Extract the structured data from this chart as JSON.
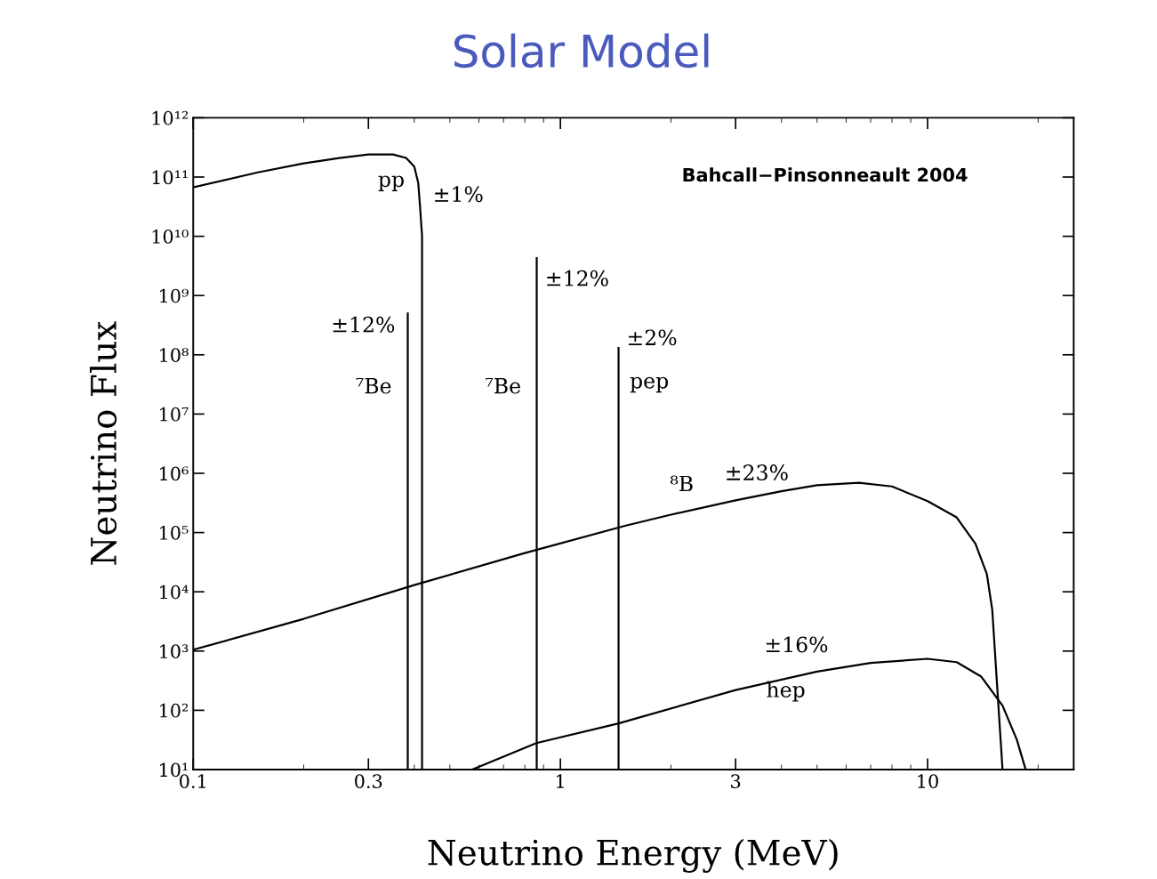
{
  "chart_data": {
    "type": "line",
    "title": "Solar Model",
    "xlabel": "Neutrino Energy (MeV)",
    "ylabel": "Neutrino Flux",
    "log": "xy",
    "xlim": [
      0.1,
      25
    ],
    "ylim": [
      10,
      1000000000000.0
    ],
    "xticks": [
      0.1,
      0.3,
      1,
      3,
      10
    ],
    "yticks": [
      {
        "value": 10,
        "label": "10¹"
      },
      {
        "value": 100,
        "label": "10²"
      },
      {
        "value": 1000,
        "label": "10³"
      },
      {
        "value": 10000,
        "label": "10⁴"
      },
      {
        "value": 100000,
        "label": "10⁵"
      },
      {
        "value": 1000000,
        "label": "10⁶"
      },
      {
        "value": 10000000,
        "label": "10⁷"
      },
      {
        "value": 100000000,
        "label": "10⁸"
      },
      {
        "value": 1000000000,
        "label": "10⁹"
      },
      {
        "value": 10000000000,
        "label": "10¹⁰"
      },
      {
        "value": 100000000000,
        "label": "10¹¹"
      },
      {
        "value": 1000000000000,
        "label": "10¹²"
      }
    ],
    "grid": false,
    "marker": "none",
    "line_style": "solid",
    "series": [
      {
        "name": "pp",
        "color": "#000000",
        "x": [
          0.1,
          0.15,
          0.2,
          0.25,
          0.3,
          0.35,
          0.38,
          0.4,
          0.41,
          0.415,
          0.42,
          0.42
        ],
        "values": [
          67000000000.0,
          120000000000.0,
          170000000000.0,
          210000000000.0,
          240000000000.0,
          240000000000.0,
          210000000000.0,
          150000000000.0,
          80000000000.0,
          30000000000.0,
          10000000000.0,
          10
        ]
      },
      {
        "name": "⁷Be",
        "color": "#000000",
        "x": [
          0.384,
          0.384
        ],
        "values": [
          10,
          500000000.0
        ]
      },
      {
        "name": "⁷Be",
        "color": "#000000",
        "x": [
          0.862,
          0.862
        ],
        "values": [
          10,
          4300000000.0
        ]
      },
      {
        "name": "pep",
        "color": "#000000",
        "x": [
          1.44,
          1.44
        ],
        "values": [
          10,
          130000000.0
        ]
      },
      {
        "name": "⁸B",
        "color": "#000000",
        "x": [
          0.1,
          0.2,
          0.4,
          0.8,
          1.5,
          2,
          3,
          4,
          5,
          6.5,
          8,
          10,
          12,
          13.5,
          14.5,
          15,
          16
        ],
        "values": [
          1050,
          3500,
          13000,
          45000,
          130000,
          200000,
          350000,
          500000,
          630000,
          690000,
          600000,
          340000,
          180000,
          65000,
          20000,
          5000,
          10
        ]
      },
      {
        "name": "hep",
        "color": "#000000",
        "x": [
          0.575,
          0.86,
          1.44,
          3,
          5,
          7,
          10,
          12,
          14,
          16,
          17.5,
          18.5
        ],
        "values": [
          10,
          28,
          60,
          220,
          450,
          630,
          740,
          650,
          370,
          120,
          32,
          10
        ]
      }
    ],
    "annotations": [
      "Bahcall−Pinsonneault 2004",
      "±1%",
      "±12%",
      "±12%",
      "±2%",
      "±23%",
      "±16%"
    ]
  }
}
